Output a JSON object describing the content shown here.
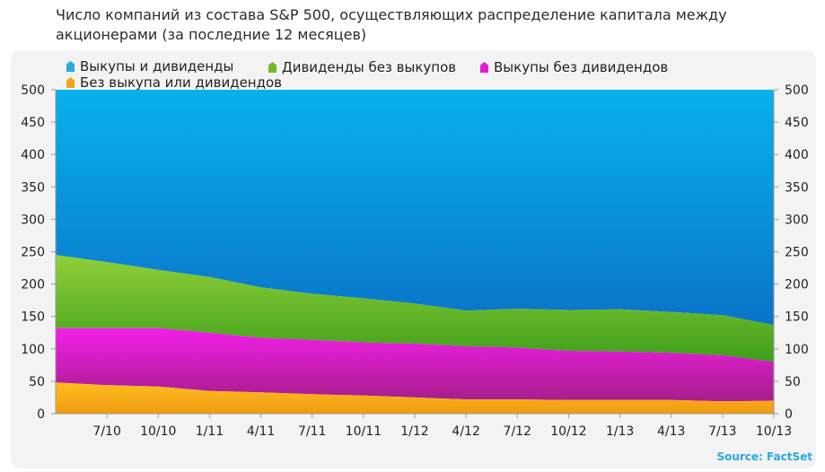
{
  "title": "Число компаний из состава S&P 500, осуществляющих распределение капитала между акционерами (за последние 12 месяцев)",
  "source": "Source: FactSet",
  "colors": {
    "top": "#0a94d9",
    "green": "#4aab1e",
    "pink": "#c01ea6",
    "orange": "#f3a51a",
    "background": "#f3f3f3"
  },
  "chart_data": {
    "type": "area",
    "stacked": true,
    "title": "Число компаний из состава S&P 500, осуществляющих распределение капитала между акционерами (за последние 12 месяцев)",
    "x_tick_labels": [
      "7/10",
      "10/10",
      "1/11",
      "4/11",
      "7/11",
      "10/11",
      "1/12",
      "4/12",
      "7/12",
      "10/12",
      "1/13",
      "4/13",
      "7/13",
      "10/13"
    ],
    "y_ticks": [
      0,
      50,
      100,
      150,
      200,
      250,
      300,
      350,
      400,
      450,
      500
    ],
    "ylim": [
      0,
      500
    ],
    "grid": false,
    "legend_position": "top",
    "legend": [
      "Выкупы и дивиденды",
      "Дивиденды без выкупов",
      "Выкупы без дивидендов",
      "Без выкупа или дивидендов"
    ],
    "x": [
      "4/10",
      "7/10",
      "10/10",
      "1/11",
      "4/11",
      "7/11",
      "10/11",
      "1/12",
      "4/12",
      "7/12",
      "10/12",
      "1/13",
      "4/13",
      "7/13",
      "10/13"
    ],
    "series": [
      {
        "name": "Без выкупа или дивидендов",
        "color": "#f3a51a",
        "values": [
          48,
          44,
          42,
          35,
          33,
          30,
          28,
          25,
          22,
          22,
          21,
          21,
          21,
          19,
          20
        ]
      },
      {
        "name": "Выкупы без дивидендов",
        "color": "#c01ea6",
        "values": [
          84,
          88,
          90,
          90,
          84,
          84,
          82,
          83,
          82,
          80,
          76,
          75,
          73,
          71,
          60
        ]
      },
      {
        "name": "Дивиденды без выкупов",
        "color": "#4aab1e",
        "values": [
          113,
          102,
          90,
          86,
          78,
          71,
          68,
          62,
          55,
          60,
          63,
          65,
          63,
          62,
          57
        ]
      },
      {
        "name": "Выкупы и дивиденды",
        "color": "#0a94d9",
        "values": [
          255,
          266,
          278,
          289,
          305,
          315,
          322,
          330,
          341,
          338,
          340,
          339,
          343,
          348,
          363
        ]
      }
    ]
  }
}
